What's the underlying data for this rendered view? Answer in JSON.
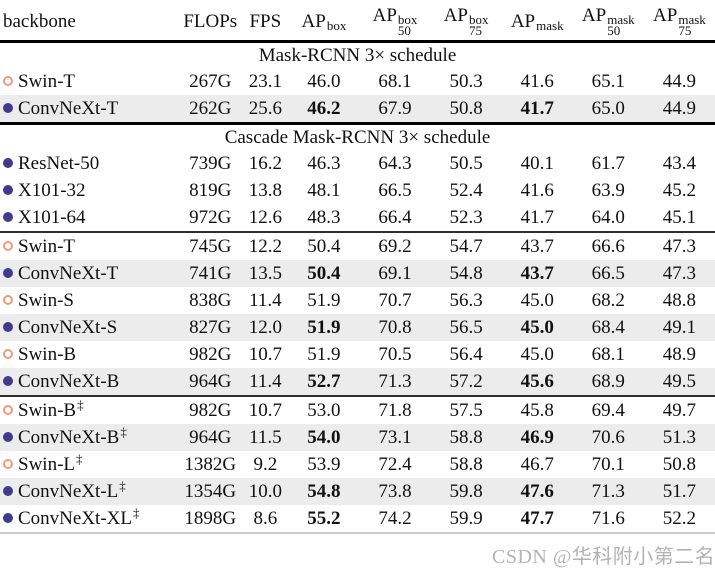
{
  "watermark": {
    "text": "CSDN @华科附小第二名"
  },
  "colors": {
    "swin_marker": "#f09b7d",
    "convnext_marker": "#413b8c",
    "row_highlight": "#ececec"
  },
  "header": {
    "columns": [
      {
        "type": "plain",
        "label": "backbone"
      },
      {
        "type": "plain",
        "label": "FLOPs"
      },
      {
        "type": "plain",
        "label": "FPS"
      },
      {
        "type": "ap",
        "label": "AP",
        "sup": "box",
        "sub": ""
      },
      {
        "type": "ap",
        "label": "AP",
        "sup": "box",
        "sub": "50"
      },
      {
        "type": "ap",
        "label": "AP",
        "sup": "box",
        "sub": "75"
      },
      {
        "type": "ap",
        "label": "AP",
        "sup": "mask",
        "sub": ""
      },
      {
        "type": "ap",
        "label": "AP",
        "sup": "mask",
        "sub": "50"
      },
      {
        "type": "ap",
        "label": "AP",
        "sup": "mask",
        "sub": "75"
      }
    ]
  },
  "bold_value_columns": [
    2,
    5
  ],
  "sections": [
    {
      "title": "Mask-RCNN 3× schedule",
      "title_rule_thick": false,
      "groups": [
        {
          "rows": [
            {
              "marker": "open",
              "name": "Swin-T",
              "dagger": false,
              "highlight": false,
              "bold": false,
              "values": [
                "267G",
                "23.1",
                "46.0",
                "68.1",
                "50.3",
                "41.6",
                "65.1",
                "44.9"
              ]
            },
            {
              "marker": "filled",
              "name": "ConvNeXt-T",
              "dagger": false,
              "highlight": true,
              "bold": true,
              "values": [
                "262G",
                "25.6",
                "46.2",
                "67.9",
                "50.8",
                "41.7",
                "65.0",
                "44.9"
              ]
            }
          ]
        }
      ]
    },
    {
      "title": "Cascade Mask-RCNN 3× schedule",
      "title_rule_thick": true,
      "groups": [
        {
          "rows": [
            {
              "marker": "filled",
              "name": "ResNet-50",
              "dagger": false,
              "highlight": false,
              "bold": false,
              "values": [
                "739G",
                "16.2",
                "46.3",
                "64.3",
                "50.5",
                "40.1",
                "61.7",
                "43.4"
              ]
            },
            {
              "marker": "filled",
              "name": "X101-32",
              "dagger": false,
              "highlight": false,
              "bold": false,
              "values": [
                "819G",
                "13.8",
                "48.1",
                "66.5",
                "52.4",
                "41.6",
                "63.9",
                "45.2"
              ]
            },
            {
              "marker": "filled",
              "name": "X101-64",
              "dagger": false,
              "highlight": false,
              "bold": false,
              "values": [
                "972G",
                "12.6",
                "48.3",
                "66.4",
                "52.3",
                "41.7",
                "64.0",
                "45.1"
              ]
            }
          ]
        },
        {
          "rows": [
            {
              "marker": "open",
              "name": "Swin-T",
              "dagger": false,
              "highlight": false,
              "bold": false,
              "values": [
                "745G",
                "12.2",
                "50.4",
                "69.2",
                "54.7",
                "43.7",
                "66.6",
                "47.3"
              ]
            },
            {
              "marker": "filled",
              "name": "ConvNeXt-T",
              "dagger": false,
              "highlight": true,
              "bold": true,
              "values": [
                "741G",
                "13.5",
                "50.4",
                "69.1",
                "54.8",
                "43.7",
                "66.5",
                "47.3"
              ]
            },
            {
              "marker": "open",
              "name": "Swin-S",
              "dagger": false,
              "highlight": false,
              "bold": false,
              "values": [
                "838G",
                "11.4",
                "51.9",
                "70.7",
                "56.3",
                "45.0",
                "68.2",
                "48.8"
              ]
            },
            {
              "marker": "filled",
              "name": "ConvNeXt-S",
              "dagger": false,
              "highlight": true,
              "bold": true,
              "values": [
                "827G",
                "12.0",
                "51.9",
                "70.8",
                "56.5",
                "45.0",
                "68.4",
                "49.1"
              ]
            },
            {
              "marker": "open",
              "name": "Swin-B",
              "dagger": false,
              "highlight": false,
              "bold": false,
              "values": [
                "982G",
                "10.7",
                "51.9",
                "70.5",
                "56.4",
                "45.0",
                "68.1",
                "48.9"
              ]
            },
            {
              "marker": "filled",
              "name": "ConvNeXt-B",
              "dagger": false,
              "highlight": true,
              "bold": true,
              "values": [
                "964G",
                "11.4",
                "52.7",
                "71.3",
                "57.2",
                "45.6",
                "68.9",
                "49.5"
              ]
            }
          ]
        },
        {
          "rows": [
            {
              "marker": "open",
              "name": "Swin-B",
              "dagger": true,
              "highlight": false,
              "bold": false,
              "values": [
                "982G",
                "10.7",
                "53.0",
                "71.8",
                "57.5",
                "45.8",
                "69.4",
                "49.7"
              ]
            },
            {
              "marker": "filled",
              "name": "ConvNeXt-B",
              "dagger": true,
              "highlight": true,
              "bold": true,
              "values": [
                "964G",
                "11.5",
                "54.0",
                "73.1",
                "58.8",
                "46.9",
                "70.6",
                "51.3"
              ]
            },
            {
              "marker": "open",
              "name": "Swin-L",
              "dagger": true,
              "highlight": false,
              "bold": false,
              "values": [
                "1382G",
                "9.2",
                "53.9",
                "72.4",
                "58.8",
                "46.7",
                "70.1",
                "50.8"
              ]
            },
            {
              "marker": "filled",
              "name": "ConvNeXt-L",
              "dagger": true,
              "highlight": true,
              "bold": true,
              "values": [
                "1354G",
                "10.0",
                "54.8",
                "73.8",
                "59.8",
                "47.6",
                "71.3",
                "51.7"
              ]
            },
            {
              "marker": "filled",
              "name": "ConvNeXt-XL",
              "dagger": true,
              "highlight": false,
              "bold": true,
              "values": [
                "1898G",
                "8.6",
                "55.2",
                "74.2",
                "59.9",
                "47.7",
                "71.6",
                "52.2"
              ]
            }
          ]
        }
      ]
    }
  ]
}
